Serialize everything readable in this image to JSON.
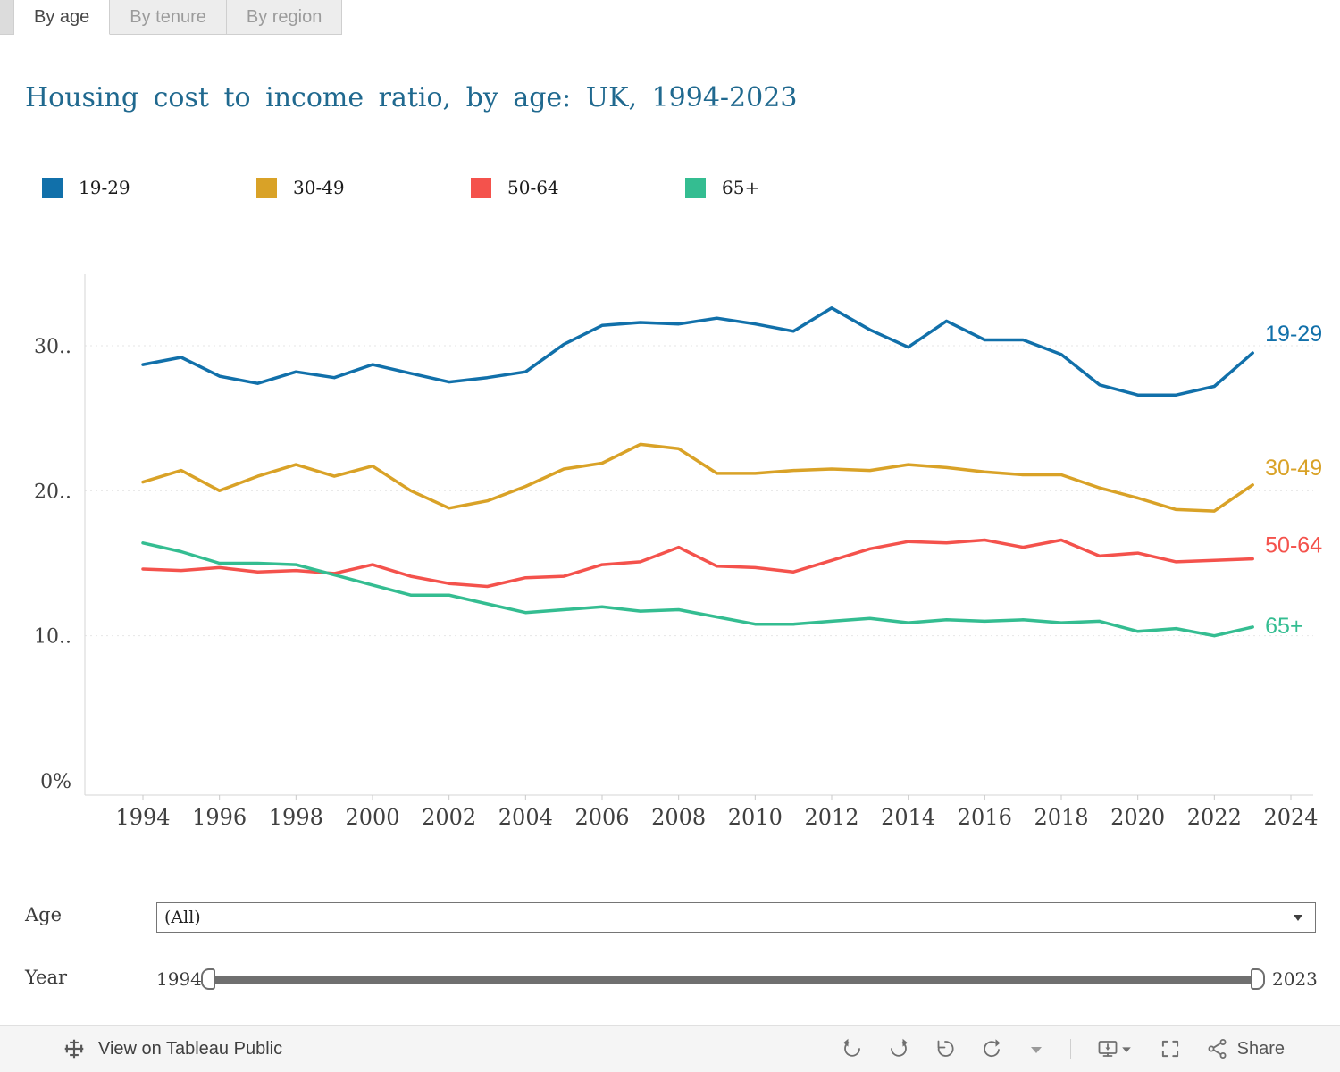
{
  "tabs": [
    {
      "label": "By age",
      "active": true
    },
    {
      "label": "By tenure",
      "active": false
    },
    {
      "label": "By region",
      "active": false
    }
  ],
  "title": "Housing cost to income ratio, by age: UK, 1994-2023",
  "chart_data": {
    "type": "line",
    "title": "Housing cost to income ratio, by age: UK, 1994-2023",
    "x": [
      1994,
      1995,
      1996,
      1997,
      1998,
      1999,
      2000,
      2001,
      2002,
      2003,
      2004,
      2005,
      2006,
      2007,
      2008,
      2009,
      2010,
      2011,
      2012,
      2013,
      2014,
      2015,
      2016,
      2017,
      2018,
      2019,
      2020,
      2021,
      2022,
      2023
    ],
    "series": [
      {
        "name": "19-29",
        "color": "#1170aa",
        "values": [
          28.7,
          29.2,
          27.9,
          27.4,
          28.2,
          27.8,
          28.7,
          28.1,
          27.5,
          27.8,
          28.2,
          30.1,
          31.4,
          31.6,
          31.5,
          31.9,
          31.5,
          31.0,
          32.6,
          31.1,
          29.9,
          31.7,
          30.4,
          30.4,
          29.4,
          27.3,
          26.6,
          26.6,
          27.2,
          29.5
        ]
      },
      {
        "name": "30-49",
        "color": "#d9a227",
        "values": [
          20.6,
          21.4,
          20.0,
          21.0,
          21.8,
          21.0,
          21.7,
          20.0,
          18.8,
          19.3,
          20.3,
          21.5,
          21.9,
          23.2,
          22.9,
          21.2,
          21.2,
          21.4,
          21.5,
          21.4,
          21.8,
          21.6,
          21.3,
          21.1,
          21.1,
          20.2,
          19.5,
          18.7,
          18.6,
          20.4
        ]
      },
      {
        "name": "50-64",
        "color": "#f4524c",
        "values": [
          14.6,
          14.5,
          14.7,
          14.4,
          14.5,
          14.3,
          14.9,
          14.1,
          13.6,
          13.4,
          14.0,
          14.1,
          14.9,
          15.1,
          16.1,
          14.8,
          14.7,
          14.4,
          15.2,
          16.0,
          16.5,
          16.4,
          16.6,
          16.1,
          16.6,
          15.5,
          15.7,
          15.1,
          15.2,
          15.3
        ]
      },
      {
        "name": "65+",
        "color": "#34bd91",
        "values": [
          16.4,
          15.8,
          15.0,
          15.0,
          14.9,
          14.2,
          13.5,
          12.8,
          12.8,
          12.2,
          11.6,
          11.8,
          12.0,
          11.7,
          11.8,
          11.3,
          10.8,
          10.8,
          11.0,
          11.2,
          10.9,
          11.1,
          11.0,
          11.1,
          10.9,
          11.0,
          10.3,
          10.5,
          10.0,
          10.6
        ]
      }
    ],
    "x_ticks": [
      1994,
      1996,
      1998,
      2000,
      2002,
      2004,
      2006,
      2008,
      2010,
      2012,
      2014,
      2016,
      2018,
      2020,
      2022,
      2024
    ],
    "y_ticks": [
      {
        "v": 0,
        "label": "0%"
      },
      {
        "v": 10,
        "label": "10.."
      },
      {
        "v": 20,
        "label": "20.."
      },
      {
        "v": 30,
        "label": "30.."
      }
    ],
    "xlim": [
      1994,
      2024
    ],
    "ylim": [
      0,
      35.5
    ],
    "grid": "horizontal-dashed",
    "legend_position": "top",
    "end_labels": true
  },
  "filters": {
    "age_label": "Age",
    "age_value": "(All)",
    "year_label": "Year",
    "year_min": "1994",
    "year_max": "2023"
  },
  "footer": {
    "view_text": "View on Tableau Public",
    "share_label": "Share"
  }
}
